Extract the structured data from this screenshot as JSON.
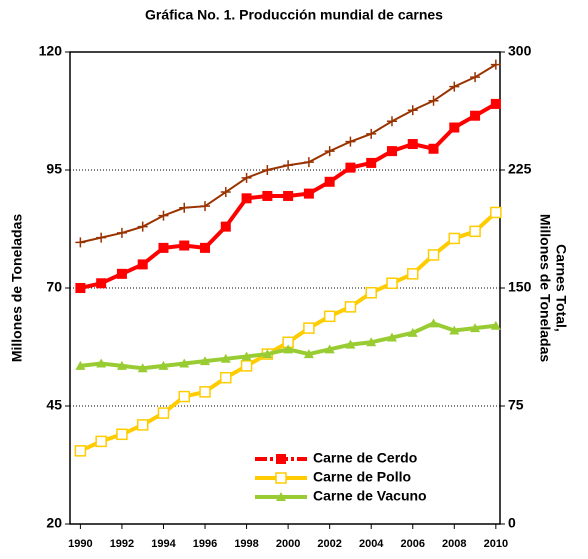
{
  "chart_data": {
    "type": "line",
    "title": "Gráfica No. 1. Producción mundial de carnes",
    "ylabel": "Millones de Toneladas",
    "y2label": [
      "Carnes Total,",
      "Millones de Toneladas"
    ],
    "x": [
      1990,
      1991,
      1992,
      1993,
      1994,
      1995,
      1996,
      1997,
      1998,
      1999,
      2000,
      2001,
      2002,
      2003,
      2004,
      2005,
      2006,
      2007,
      2008,
      2009,
      2010
    ],
    "xlim": [
      1989.5,
      2010.2
    ],
    "xticks": [
      1990,
      1992,
      1994,
      1996,
      1998,
      2000,
      2002,
      2004,
      2006,
      2008,
      2010
    ],
    "ylim": [
      20,
      120
    ],
    "yticks": [
      20,
      45,
      70,
      95,
      120
    ],
    "y2lim": [
      0,
      300
    ],
    "y2ticks": [
      0,
      75,
      150,
      225,
      300
    ],
    "grid": true,
    "legend": "lower right",
    "series": [
      {
        "name": "Carne de Cerdo",
        "color": "#ff0000",
        "marker": "square",
        "values": [
          70,
          71,
          73,
          75,
          78.5,
          79,
          78.5,
          83,
          89,
          89.5,
          89.5,
          90,
          92.5,
          95.5,
          96.5,
          99,
          100.5,
          99.5,
          104,
          106.5,
          109
        ]
      },
      {
        "name": "Carne de Pollo",
        "color": "#ffcc00",
        "marker": "open-square",
        "values": [
          35.5,
          37.5,
          39,
          41,
          43.5,
          47,
          48,
          51,
          53.5,
          56,
          58.5,
          61.5,
          64,
          66,
          69,
          71,
          73,
          77,
          80.5,
          82,
          86
        ]
      },
      {
        "name": "Carne de Vacuno",
        "color": "#99cc33",
        "marker": "triangle",
        "values": [
          53.5,
          54,
          53.5,
          53,
          53.5,
          54,
          54.5,
          55,
          55.5,
          56,
          57,
          56,
          57,
          58,
          58.5,
          59.5,
          60.5,
          62.5,
          61,
          61.5,
          62
        ]
      },
      {
        "color": "#993300",
        "marker": "plus",
        "axis": "y2",
        "values": [
          179,
          182,
          185,
          189,
          196,
          201,
          202,
          211,
          220,
          225,
          228,
          230,
          237,
          243,
          248,
          256,
          263,
          269,
          278,
          284,
          292
        ]
      }
    ]
  }
}
